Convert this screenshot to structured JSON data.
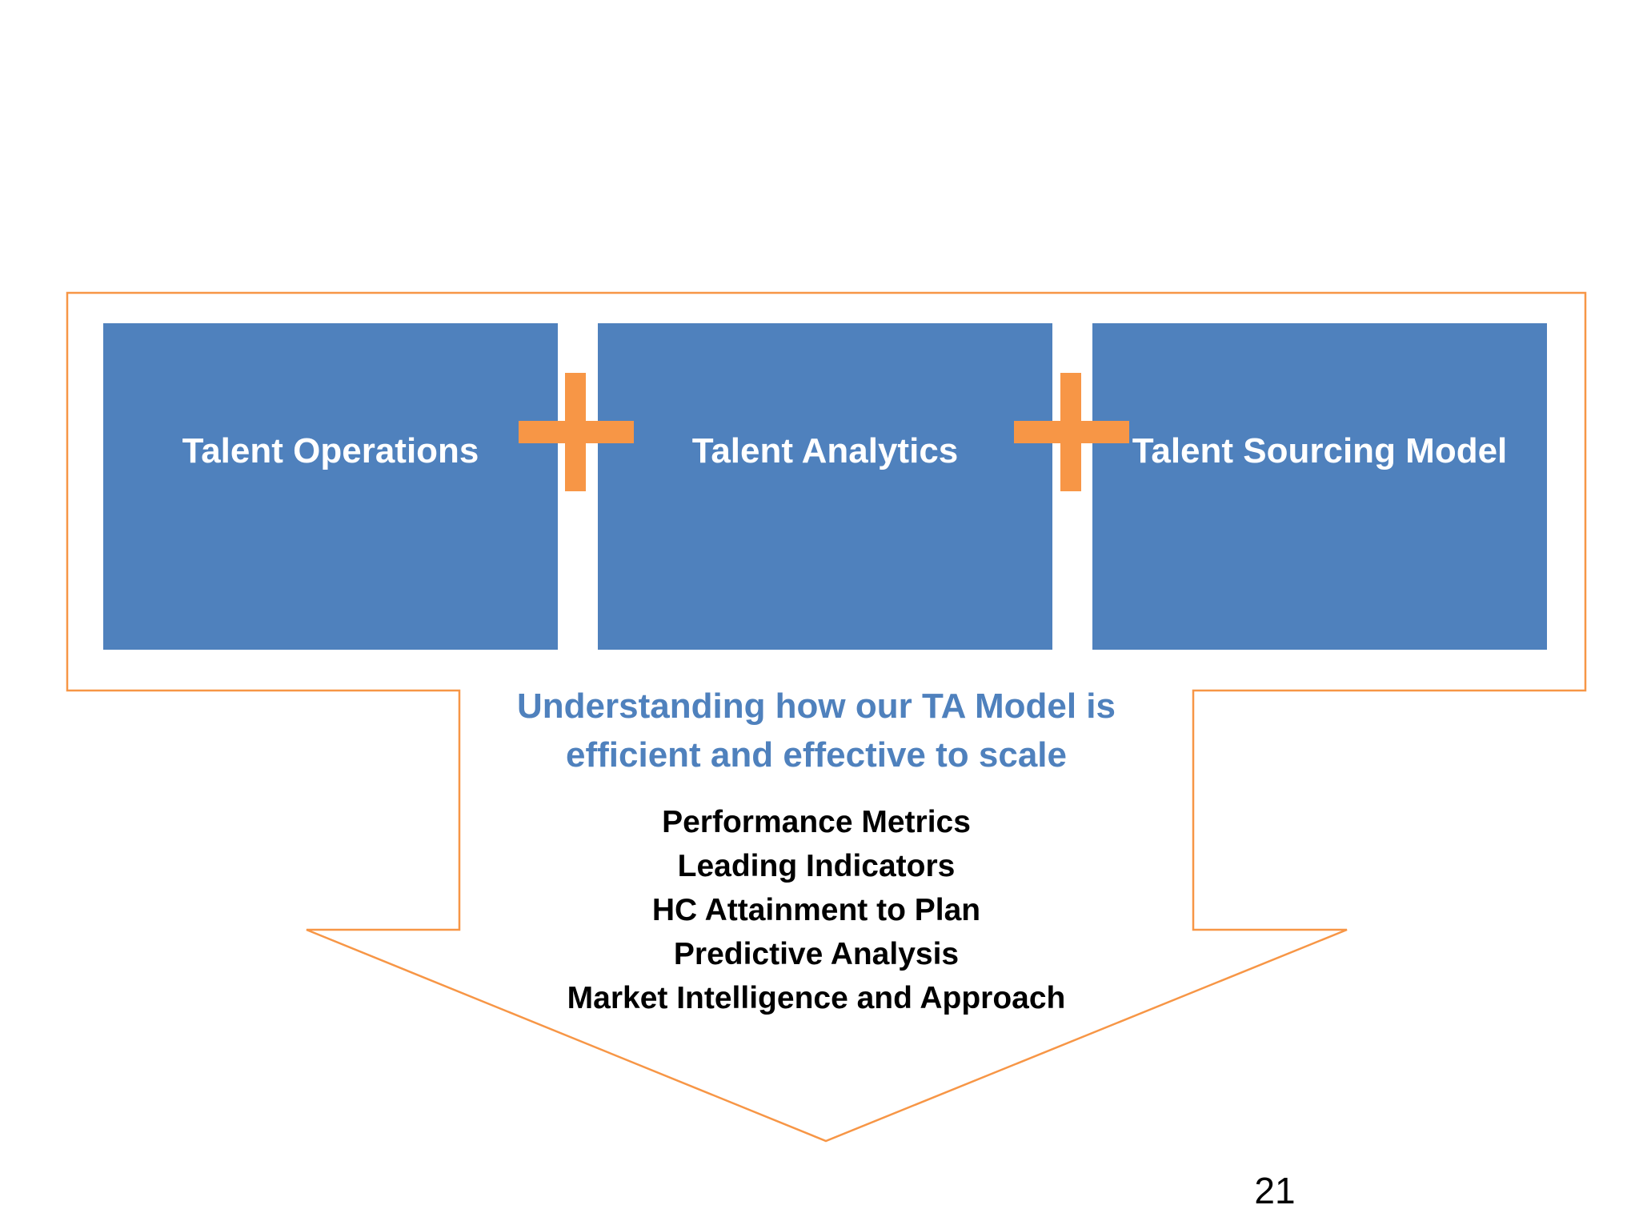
{
  "colors": {
    "box_fill": "#4f81bd",
    "accent_orange": "#f79646",
    "headline_blue": "#4f81bd",
    "text_black": "#000000"
  },
  "components": [
    {
      "label": "Talent Operations"
    },
    {
      "label": "Talent Analytics"
    },
    {
      "label": "Talent Sourcing Model"
    }
  ],
  "connectors": [
    "plus-icon",
    "plus-icon"
  ],
  "headline": {
    "line1": "Understanding how our TA Model is",
    "line2": "efficient and effective to scale"
  },
  "metrics": [
    "Performance Metrics",
    "Leading Indicators",
    "HC Attainment to Plan",
    "Predictive Analysis",
    "Market Intelligence and Approach"
  ],
  "page_number": "21"
}
